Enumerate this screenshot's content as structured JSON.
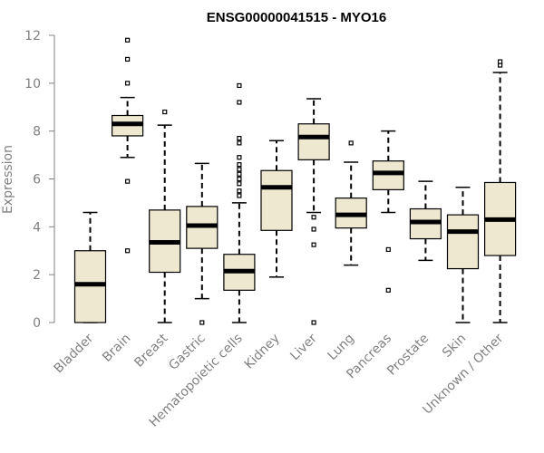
{
  "chart_data": {
    "type": "boxplot",
    "title": "ENSG00000041515 - MYO16",
    "xlabel": "",
    "ylabel": "Expression",
    "ylim": [
      0,
      12
    ],
    "yticks": [
      0,
      2,
      4,
      6,
      8,
      10,
      12
    ],
    "grid": false,
    "legend": "none",
    "box_fill": "#efe8d0",
    "categories": [
      "Bladder",
      "Brain",
      "Breast",
      "Gastric",
      "Hematopoietic cells",
      "Kidney",
      "Liver",
      "Lung",
      "Pancreas",
      "Prostate",
      "Skin",
      "Unknown / Other"
    ],
    "boxes": [
      {
        "whisker_low": 0.0,
        "q1": 0.0,
        "median": 1.6,
        "q3": 3.0,
        "whisker_high": 4.6,
        "outliers": []
      },
      {
        "whisker_low": 6.9,
        "q1": 7.8,
        "median": 8.3,
        "q3": 8.65,
        "whisker_high": 9.4,
        "outliers": [
          3.0,
          5.9,
          10.0,
          11.0,
          11.8
        ]
      },
      {
        "whisker_low": 0.0,
        "q1": 2.1,
        "median": 3.35,
        "q3": 4.7,
        "whisker_high": 8.25,
        "outliers": [
          8.8
        ]
      },
      {
        "whisker_low": 1.0,
        "q1": 3.1,
        "median": 4.05,
        "q3": 4.85,
        "whisker_high": 6.65,
        "outliers": [
          0.0
        ]
      },
      {
        "whisker_low": 0.0,
        "q1": 1.35,
        "median": 2.15,
        "q3": 2.85,
        "whisker_high": 5.0,
        "outliers": [
          5.3,
          5.5,
          5.8,
          6.0,
          6.2,
          6.4,
          6.6,
          6.9,
          7.5,
          7.7,
          9.2,
          9.9
        ]
      },
      {
        "whisker_low": 1.9,
        "q1": 3.85,
        "median": 5.65,
        "q3": 6.35,
        "whisker_high": 7.6,
        "outliers": []
      },
      {
        "whisker_low": 4.6,
        "q1": 6.8,
        "median": 7.75,
        "q3": 8.3,
        "whisker_high": 9.35,
        "outliers": [
          0.0,
          3.25,
          3.9,
          4.4
        ]
      },
      {
        "whisker_low": 2.4,
        "q1": 3.95,
        "median": 4.5,
        "q3": 5.2,
        "whisker_high": 6.7,
        "outliers": [
          7.5
        ]
      },
      {
        "whisker_low": 4.6,
        "q1": 5.55,
        "median": 6.25,
        "q3": 6.75,
        "whisker_high": 8.0,
        "outliers": [
          1.35,
          3.05
        ]
      },
      {
        "whisker_low": 2.6,
        "q1": 3.5,
        "median": 4.2,
        "q3": 4.75,
        "whisker_high": 5.9,
        "outliers": []
      },
      {
        "whisker_low": 0.0,
        "q1": 2.25,
        "median": 3.8,
        "q3": 4.5,
        "whisker_high": 5.65,
        "outliers": []
      },
      {
        "whisker_low": 0.0,
        "q1": 2.8,
        "median": 4.3,
        "q3": 5.85,
        "whisker_high": 10.45,
        "outliers": [
          10.75,
          10.9
        ]
      }
    ]
  }
}
